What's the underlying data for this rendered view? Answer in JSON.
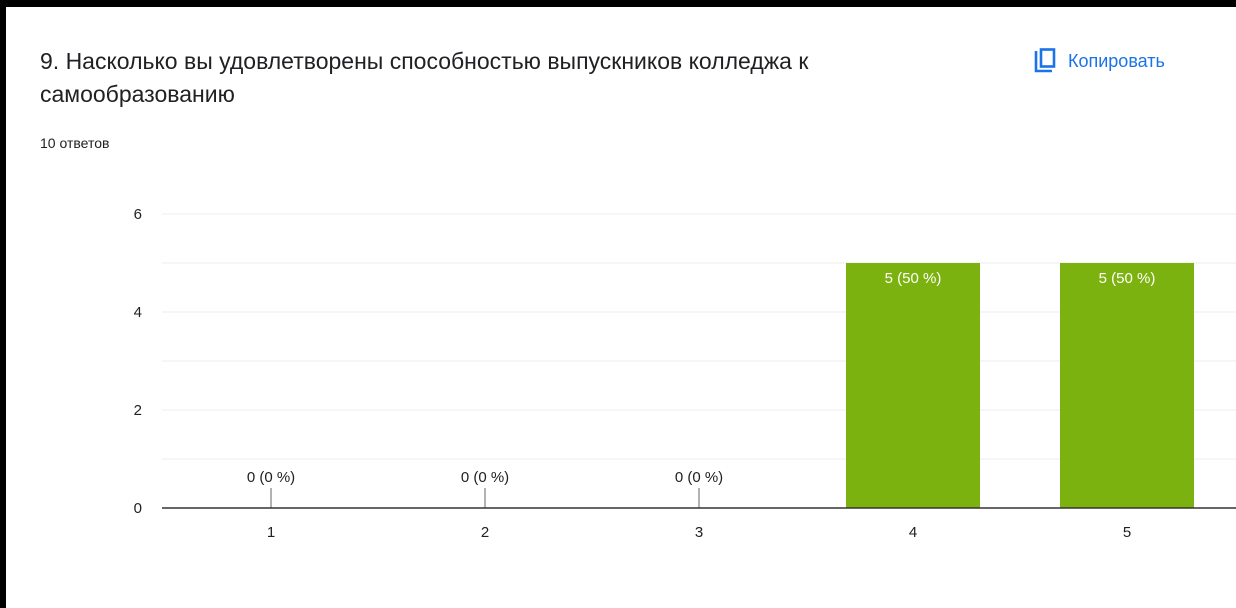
{
  "question": {
    "title": "9. Насколько вы удовлетворены способностью выпускников колледжа к самообразованию",
    "response_count": "10 ответов"
  },
  "actions": {
    "copy_label": "Копировать",
    "copy_icon": "copy-icon"
  },
  "colors": {
    "bar": "#7cb20f",
    "accent": "#1a73e8",
    "text": "#202124",
    "grid": "#eeeeee",
    "axis": "#333333"
  },
  "chart_data": {
    "type": "bar",
    "categories": [
      "1",
      "2",
      "3",
      "4",
      "5"
    ],
    "values": [
      0,
      0,
      0,
      5,
      5
    ],
    "labels": [
      "0 (0 %)",
      "0 (0 %)",
      "0 (0 %)",
      "5 (50 %)",
      "5 (50 %)"
    ],
    "ylim": [
      0,
      6
    ],
    "yticks": [
      0,
      2,
      4,
      6
    ],
    "grid": true,
    "legend": "none"
  }
}
